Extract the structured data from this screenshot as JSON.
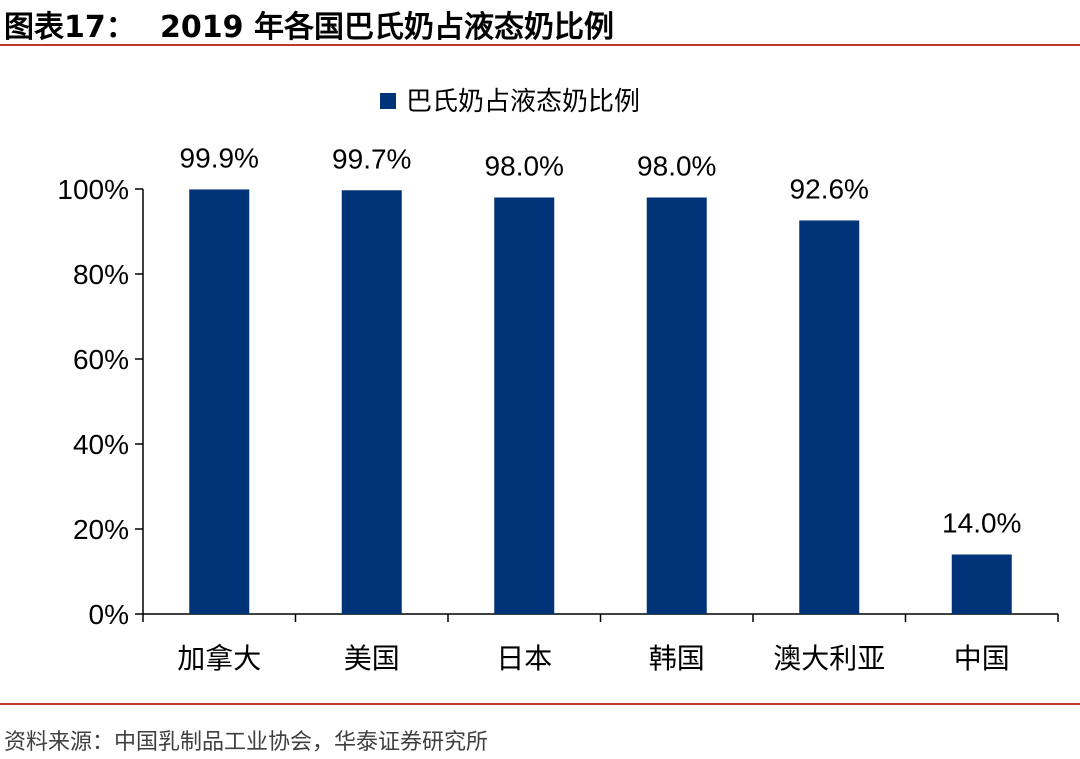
{
  "header": {
    "label": "图表17：",
    "title": "2019 年各国巴氏奶占液态奶比例"
  },
  "footer": {
    "source": "资料来源：中国乳制品工业协会，华泰证券研究所"
  },
  "colors": {
    "bar": "#003378",
    "rule": "#c0392b"
  },
  "chart_data": {
    "type": "bar",
    "categories": [
      "加拿大",
      "美国",
      "日本",
      "韩国",
      "澳大利亚",
      "中国"
    ],
    "series": [
      {
        "name": "巴氏奶占液态奶比例",
        "values": [
          99.9,
          99.7,
          98.0,
          98.0,
          92.6,
          14.0
        ],
        "labels": [
          "99.9%",
          "99.7%",
          "98.0%",
          "98.0%",
          "92.6%",
          "14.0%"
        ]
      }
    ],
    "y_ticks": [
      "0%",
      "20%",
      "40%",
      "60%",
      "80%",
      "100%"
    ],
    "ylim": [
      0,
      100
    ],
    "grid": false,
    "legend_position": "top-center"
  }
}
